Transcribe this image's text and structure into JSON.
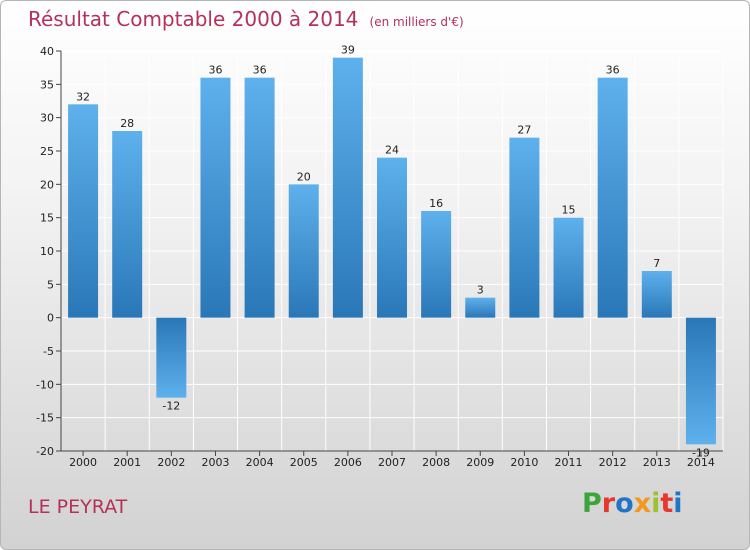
{
  "title": "Résultat Comptable 2000 à 2014",
  "unit": "(en milliers d'€)",
  "commune": "LE PEYRAT",
  "logo": {
    "text": "Proxiti",
    "letters": [
      "P",
      "r",
      "o",
      "x",
      "i",
      "t",
      "i"
    ],
    "colors": [
      "#3aa53a",
      "#e8372c",
      "#1f74c6",
      "#f39a1c",
      "#9ac233",
      "#e8372c",
      "#1f74c6"
    ]
  },
  "colors": {
    "title": "#b5315a",
    "bar_light": "#5eb1ec",
    "bar_dark": "#2a77b8",
    "grid": "#ffffff"
  },
  "chart_data": {
    "type": "bar",
    "title": "Résultat Comptable 2000 à 2014",
    "xlabel": "",
    "ylabel": "",
    "ylim": [
      -20,
      40
    ],
    "yticks": [
      40,
      35,
      30,
      25,
      20,
      15,
      10,
      5,
      0,
      -5,
      -10,
      -15,
      -20
    ],
    "categories": [
      "2000",
      "2001",
      "2002",
      "2003",
      "2004",
      "2005",
      "2006",
      "2007",
      "2008",
      "2009",
      "2010",
      "2011",
      "2012",
      "2013",
      "2014"
    ],
    "values": [
      32,
      28,
      -12,
      36,
      36,
      20,
      39,
      24,
      16,
      3,
      27,
      15,
      36,
      7,
      -19
    ],
    "grid": true
  }
}
